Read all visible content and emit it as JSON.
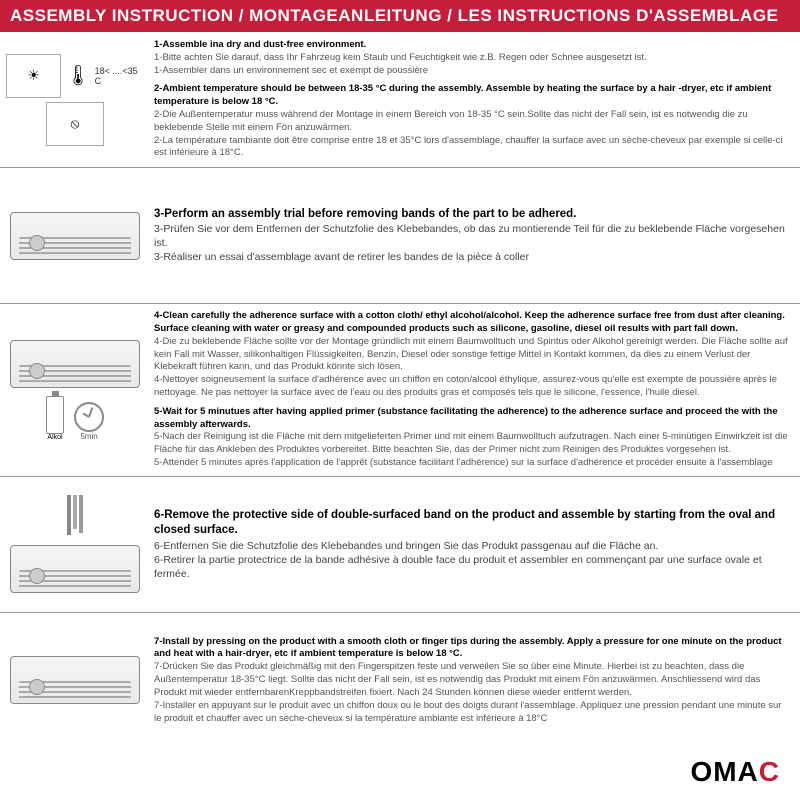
{
  "header": "ASSEMBLY INSTRUCTION / MONTAGEANLEITUNG / LES INSTRUCTIONS D'ASSEMBLAGE",
  "temp_label": "18< ....<35 C",
  "alcohol_label": "Alkol",
  "timer_label": "5min",
  "logo_black": "OMA",
  "logo_red": "C",
  "rows": [
    {
      "illus": "env",
      "steps": [
        {
          "b": "1-Assemble ina dry and dust-free environment.",
          "s": "1-Bitte achten Sie darauf, dass Ihr Fahrzeug kein Staub und Feuchtigkeit wie z.B. Regen oder Schnee ausgesetzt ist.\n1-Assembler dans un environnement sec et exempt de poussière"
        },
        {
          "b": "2-Ambient temperature should be between 18-35 °C  during the assembly. Assemble by heating the surface by a hair -dryer, etc if ambient temperature is below 18 °C.",
          "s": "2-Die Außentemperatur muss während der Montage in einem Bereich von 18-35 °C  sein.Sollte das nicht der Fall sein, ist es notwendig die zu beklebende Stelle mit einem Fön anzuwärmen.\n2-La température tambiante doit être comprise entre 18 et 35°C lors d'assemblage, chauffer la surface avec un sèche-cheveux par exemple si celle-ci est inférieure à 18°C."
        }
      ]
    },
    {
      "illus": "car",
      "class": "row3",
      "steps": [
        {
          "b": "3-Perform an assembly trial before removing bands of the part to be adhered.",
          "s": "3-Prüfen Sie vor dem Entfernen der Schutzfolie des Klebebandes, ob das zu montierende Teil für die zu beklebende Fläche vorgesehen ist.\n3-Réaliser un essai d'assemblage avant de retirer les bandes de la pièce à coller"
        }
      ]
    },
    {
      "illus": "clean",
      "steps": [
        {
          "b": "4-Clean carefully the adherence surface with a cotton cloth/ ethyl alcohol/alcohol. Keep the adherence surface free from dust after cleaning. Surface cleaning with water or greasy and compounded products such as silicone, gasoline, diesel oil results with part fall down.",
          "s": "4-Die zu beklebende Fläche sollte vor der Montage gründlich mit einem Baumwolltuch und Spiritus oder Alkohol gereinigt werden. Die Fläche sollte auf kein Fall mit Wasser, silikonhaltigen Flüssigkeiten, Benzin, Diesel oder sonstige fettige Mittel in Kontakt kommen, da dies zu einem Verlust der Klebekraft führen kann, und das Produkt könnte sich lösen.\n4-Nettoyer soigneusement la surface d'adhérence avec un chiffon en coton/alcool éthylique, assurez-vous qu'elle est exempte de poussière après le nettoyage. Ne pas nettoyer la surface avec de l'eau ou des produits gras et composés tels que le silicone, l'essence, l'huile diesel."
        },
        {
          "b": "5-Wait for 5 minutues after having applied primer (substance facilitating the adherence) to the adherence surface and proceed the with the assembly afterwards.",
          "s": "5-Nach der Reinigung ist die Fläche mit dem mitgelieferten Primer und mit einem Baumwolltuch aufzutragen. Nach einer 5-minütigen Einwirkzeit ist die Fläche für das Ankleben des Produktes vorbereitet. Bitte beachten Sie, das der Primer nicht zum Reinigen des Produktes vorgesehen ist.\n5-Attender 5 minutes après l'application de l'apprêt (substance facilitant l'adhérence) sur la surface d'adhérence et procéder ensuite à l'assemblage"
        }
      ]
    },
    {
      "illus": "tools",
      "class": "row3",
      "steps": [
        {
          "b": "6-Remove the protective side of double-surfaced band on the product and assemble by starting from the oval and closed surface.",
          "s": "6-Entfernen Sie die Schutzfolie des Klebebandes und bringen Sie das Produkt passgenau auf die Fläche an.\n6-Retirer la partie protectrice de la bande adhésive à double face du produit et assembler en commençant par une surface ovale et fermée."
        }
      ]
    },
    {
      "illus": "press",
      "steps": [
        {
          "b": "7-Install by pressing on the product with a smooth cloth or finger tips during the assembly. Apply a pressure for one minute on the product and heat with a hair-dryer, etc if ambient temperature is below 18 °C.",
          "s": "7-Drücken Sie das Produkt gleichmäßig mit den Fingerspitzen feste und verweilen Sie so über eine Minute. Hierbei ist zu beachten, dass die Außentemperatur 18-35°C liegt. Sollte das nicht der Fall sein, ist es notwendig das Produkt mit einem Fön anzuwärmen. Anschliessend wird das Produkt mit wieder entfernbarenKreppbandstreifen fixiert. Nach 24 Stunden können diese wieder entfernt werden.\n7-Installer en appuyant sur le produit avec un chiffon doux ou le bout des doigts durant l'assemblage. Appliquez une pression pendant une minute sur le produit et chauffer avec un sèche-cheveux si la température ambiante est inférieure à 18°C"
        }
      ]
    }
  ]
}
